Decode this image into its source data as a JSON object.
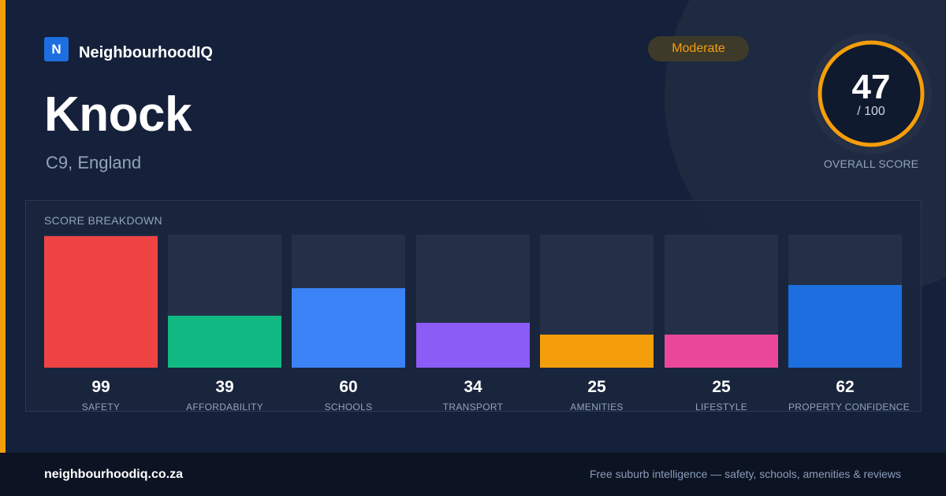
{
  "brand": {
    "logo_letter": "N",
    "name": "NeighbourhoodIQ"
  },
  "suburb": {
    "name": "Knock",
    "region": "C9, England"
  },
  "rating_badge": "Moderate",
  "overall": {
    "score": "47",
    "max": "/ 100",
    "fraction": 0.47,
    "label": "OVERALL SCORE"
  },
  "breakdown": {
    "title": "SCORE BREAKDOWN",
    "items": [
      {
        "value": "99",
        "label": "SAFETY",
        "color": "#ef4444"
      },
      {
        "value": "39",
        "label": "AFFORDABILITY",
        "color": "#10b981"
      },
      {
        "value": "60",
        "label": "SCHOOLS",
        "color": "#3b82f6"
      },
      {
        "value": "34",
        "label": "TRANSPORT",
        "color": "#8b5cf6"
      },
      {
        "value": "25",
        "label": "AMENITIES",
        "color": "#f59e0b"
      },
      {
        "value": "25",
        "label": "LIFESTYLE",
        "color": "#ec4899"
      },
      {
        "value": "62",
        "label": "PROPERTY CONFIDENCE",
        "color": "#1d6fe0"
      }
    ]
  },
  "colors": {
    "accent": "#f59e0b",
    "background": "#15213a",
    "footer": "#0c1424"
  },
  "footer": {
    "site": "neighbourhoodiq.co.za",
    "tagline": "Free suburb intelligence — safety, schools, amenities & reviews"
  }
}
